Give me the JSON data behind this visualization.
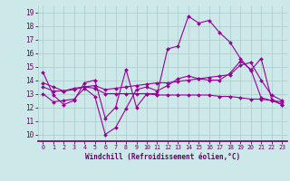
{
  "xlabel": "Windchill (Refroidissement éolien,°C)",
  "bg_color": "#cce8e8",
  "line_color": "#990099",
  "grid_color": "#aacccc",
  "ylim": [
    9.5,
    19.5
  ],
  "xlim": [
    -0.5,
    23.5
  ],
  "yticks": [
    10,
    11,
    12,
    13,
    14,
    15,
    16,
    17,
    18,
    19
  ],
  "xticks": [
    0,
    1,
    2,
    3,
    4,
    5,
    6,
    7,
    8,
    9,
    10,
    11,
    12,
    13,
    14,
    15,
    16,
    17,
    18,
    19,
    20,
    21,
    22,
    23
  ],
  "lines": [
    {
      "x": [
        0,
        1,
        2,
        3,
        4,
        5,
        6,
        7,
        8,
        9,
        10,
        11,
        12,
        13,
        14,
        15,
        16,
        17,
        18,
        19,
        20,
        21,
        22,
        23
      ],
      "y": [
        14.6,
        12.9,
        12.2,
        12.5,
        13.8,
        14.0,
        11.2,
        12.0,
        14.8,
        12.0,
        13.0,
        13.0,
        16.3,
        16.5,
        18.7,
        18.2,
        18.4,
        17.5,
        16.8,
        15.6,
        14.7,
        15.6,
        12.6,
        12.2
      ]
    },
    {
      "x": [
        0,
        1,
        2,
        3,
        4,
        5,
        6,
        7,
        8,
        9,
        10,
        11,
        12,
        13,
        14,
        15,
        16,
        17,
        18,
        19,
        20,
        21,
        22,
        23
      ],
      "y": [
        13.0,
        12.4,
        12.5,
        12.6,
        13.4,
        12.8,
        10.0,
        10.5,
        11.9,
        13.3,
        13.5,
        13.2,
        13.6,
        14.1,
        14.3,
        14.1,
        14.0,
        14.0,
        14.5,
        15.4,
        14.8,
        12.7,
        12.5,
        12.2
      ]
    },
    {
      "x": [
        0,
        1,
        2,
        3,
        4,
        5,
        6,
        7,
        8,
        9,
        10,
        11,
        12,
        13,
        14,
        15,
        16,
        17,
        18,
        19,
        20,
        21,
        22,
        23
      ],
      "y": [
        13.5,
        13.2,
        13.2,
        13.3,
        13.5,
        13.6,
        13.3,
        13.4,
        13.5,
        13.6,
        13.7,
        13.8,
        13.8,
        13.9,
        14.0,
        14.1,
        14.2,
        14.3,
        14.4,
        15.1,
        15.3,
        14.0,
        12.9,
        12.5
      ]
    },
    {
      "x": [
        0,
        1,
        2,
        3,
        4,
        5,
        6,
        7,
        8,
        9,
        10,
        11,
        12,
        13,
        14,
        15,
        16,
        17,
        18,
        19,
        20,
        21,
        22,
        23
      ],
      "y": [
        13.8,
        13.5,
        13.2,
        13.4,
        13.5,
        13.4,
        13.0,
        13.0,
        13.0,
        13.0,
        13.0,
        12.9,
        12.9,
        12.9,
        12.9,
        12.9,
        12.9,
        12.8,
        12.8,
        12.7,
        12.6,
        12.6,
        12.5,
        12.4
      ]
    }
  ]
}
